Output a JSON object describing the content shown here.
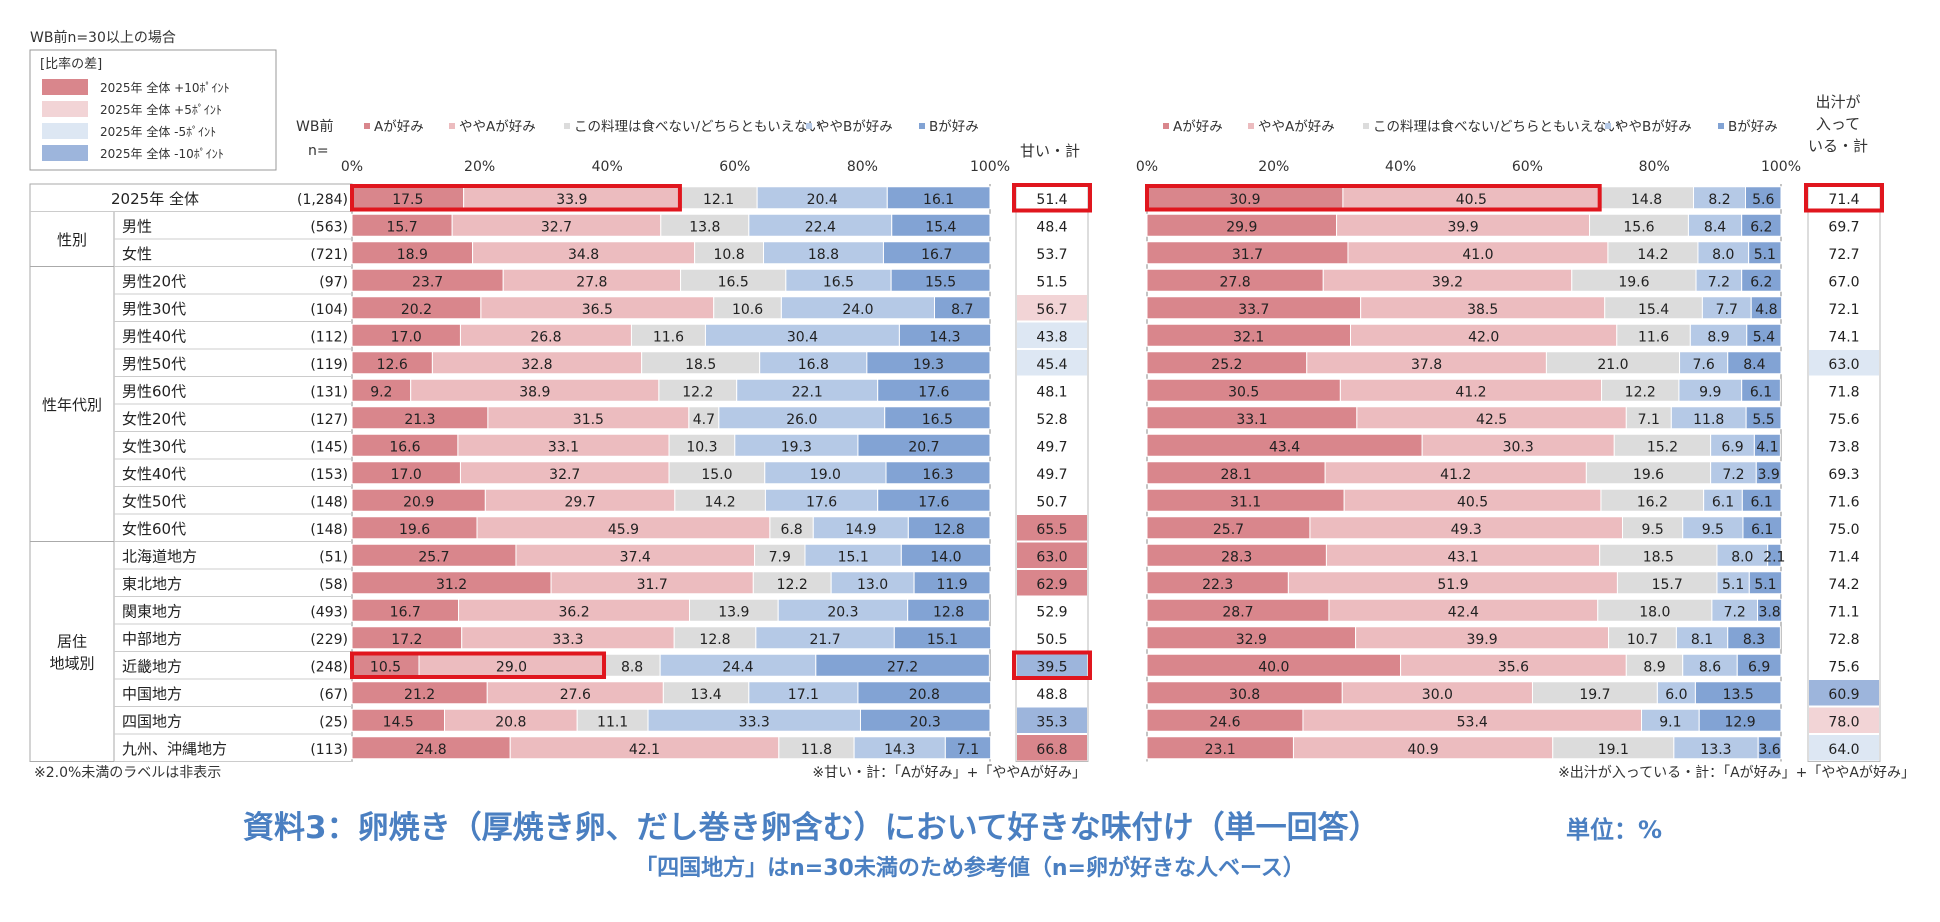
{
  "page": {
    "condition_note": "WB前n=30以上の場合",
    "legend_title": "[比率の差]",
    "legend_items": [
      {
        "label": "2025年 全体 +10ﾎﾟｲﾝﾄ",
        "color": "#d9868c"
      },
      {
        "label": "2025年 全体 +5ﾎﾟｲﾝﾄ",
        "color": "#f2d4d6"
      },
      {
        "label": "2025年 全体 -5ﾎﾟｲﾝﾄ",
        "color": "#dde7f3"
      },
      {
        "label": "2025年 全体 -10ﾎﾟｲﾝﾄ",
        "color": "#9db5dc"
      }
    ],
    "n_header": [
      "WB前",
      "n="
    ],
    "sweet_header": "甘い・計",
    "dashi_header": [
      "出汁が",
      "入って",
      "いる・計"
    ],
    "footnote_left": "※2.0%未満のラベルは非表示",
    "footnote_mid": "※甘い・計：「Aが好み」+「ややAが好み」",
    "footnote_right": "※出汁が入っている・計：「Aが好み」+「ややAが好み」",
    "title": "資料3：卵焼き（厚焼き卵、だし巻き卵含む）において好きな味付け（単一回答）",
    "unit": "単位：%",
    "subtitle": "「四国地方」はn=30未満のため参考値（n=卵が好きな人ベース）"
  },
  "chart_data": {
    "type": "bar",
    "orientation": "horizontal-stacked-100",
    "xlim": [
      0,
      100
    ],
    "ticks": [
      "0%",
      "20%",
      "40%",
      "60%",
      "80%",
      "100%"
    ],
    "legend": [
      "Aが好み",
      "ややAが好み",
      "この料理は食べない/どちらともいえない",
      "ややBが好み",
      "Bが好み"
    ],
    "series_colors": [
      "#d9868c",
      "#ecbcbf",
      "#dcdcdc",
      "#b5c9e6",
      "#82a3d4"
    ],
    "groups": [
      {
        "label": "",
        "start": 0,
        "count": 1
      },
      {
        "label": "性別",
        "start": 1,
        "count": 2
      },
      {
        "label": "性年代別",
        "start": 3,
        "count": 10
      },
      {
        "label": "居住\n地域別",
        "start": 13,
        "count": 8
      }
    ],
    "rows": [
      {
        "label": "2025年 全体",
        "n": "(1,284)",
        "chart1": [
          17.5,
          33.9,
          12.1,
          20.4,
          16.1
        ],
        "sweet": 51.4,
        "chart2": [
          30.9,
          40.5,
          14.8,
          8.2,
          5.6
        ],
        "dashi": 71.4
      },
      {
        "label": "男性",
        "n": "(563)",
        "chart1": [
          15.7,
          32.7,
          13.8,
          22.4,
          15.4
        ],
        "sweet": 48.4,
        "chart2": [
          29.9,
          39.9,
          15.6,
          8.4,
          6.2
        ],
        "dashi": 69.7
      },
      {
        "label": "女性",
        "n": "(721)",
        "chart1": [
          18.9,
          34.8,
          10.8,
          18.8,
          16.7
        ],
        "sweet": 53.7,
        "chart2": [
          31.7,
          41.0,
          14.2,
          8.0,
          5.1
        ],
        "dashi": 72.7
      },
      {
        "label": "男性20代",
        "n": "(97)",
        "chart1": [
          23.7,
          27.8,
          16.5,
          16.5,
          15.5
        ],
        "sweet": 51.5,
        "chart2": [
          27.8,
          39.2,
          19.6,
          7.2,
          6.2
        ],
        "dashi": 67.0
      },
      {
        "label": "男性30代",
        "n": "(104)",
        "chart1": [
          20.2,
          36.5,
          10.6,
          24.0,
          8.7
        ],
        "sweet": 56.7,
        "chart2": [
          33.7,
          38.5,
          15.4,
          7.7,
          4.8
        ],
        "dashi": 72.1
      },
      {
        "label": "男性40代",
        "n": "(112)",
        "chart1": [
          17.0,
          26.8,
          11.6,
          30.4,
          14.3
        ],
        "sweet": 43.8,
        "chart2": [
          32.1,
          42.0,
          11.6,
          8.9,
          5.4
        ],
        "dashi": 74.1
      },
      {
        "label": "男性50代",
        "n": "(119)",
        "chart1": [
          12.6,
          32.8,
          18.5,
          16.8,
          19.3
        ],
        "sweet": 45.4,
        "chart2": [
          25.2,
          37.8,
          21.0,
          7.6,
          8.4
        ],
        "dashi": 63.0
      },
      {
        "label": "男性60代",
        "n": "(131)",
        "chart1": [
          9.2,
          38.9,
          12.2,
          22.1,
          17.6
        ],
        "sweet": 48.1,
        "chart2": [
          30.5,
          41.2,
          12.2,
          9.9,
          6.1
        ],
        "dashi": 71.8
      },
      {
        "label": "女性20代",
        "n": "(127)",
        "chart1": [
          21.3,
          31.5,
          4.7,
          26.0,
          16.5
        ],
        "sweet": 52.8,
        "chart2": [
          33.1,
          42.5,
          7.1,
          11.8,
          5.5
        ],
        "dashi": 75.6
      },
      {
        "label": "女性30代",
        "n": "(145)",
        "chart1": [
          16.6,
          33.1,
          10.3,
          19.3,
          20.7
        ],
        "sweet": 49.7,
        "chart2": [
          43.4,
          30.3,
          15.2,
          6.9,
          4.1
        ],
        "dashi": 73.8
      },
      {
        "label": "女性40代",
        "n": "(153)",
        "chart1": [
          17.0,
          32.7,
          15.0,
          19.0,
          16.3
        ],
        "sweet": 49.7,
        "chart2": [
          28.1,
          41.2,
          19.6,
          7.2,
          3.9
        ],
        "dashi": 69.3
      },
      {
        "label": "女性50代",
        "n": "(148)",
        "chart1": [
          20.9,
          29.7,
          14.2,
          17.6,
          17.6
        ],
        "sweet": 50.7,
        "chart2": [
          31.1,
          40.5,
          16.2,
          6.1,
          6.1
        ],
        "dashi": 71.6
      },
      {
        "label": "女性60代",
        "n": "(148)",
        "chart1": [
          19.6,
          45.9,
          6.8,
          14.9,
          12.8
        ],
        "sweet": 65.5,
        "chart2": [
          25.7,
          49.3,
          9.5,
          9.5,
          6.1
        ],
        "dashi": 75.0
      },
      {
        "label": "北海道地方",
        "n": "(51)",
        "chart1": [
          25.7,
          37.4,
          7.9,
          15.1,
          14.0
        ],
        "sweet": 63.0,
        "chart2": [
          28.3,
          43.1,
          18.5,
          8.0,
          2.1
        ],
        "dashi": 71.4
      },
      {
        "label": "東北地方",
        "n": "(58)",
        "chart1": [
          31.2,
          31.7,
          12.2,
          13.0,
          11.9
        ],
        "sweet": 62.9,
        "chart2": [
          22.3,
          51.9,
          15.7,
          5.1,
          5.1
        ],
        "dashi": 74.2
      },
      {
        "label": "関東地方",
        "n": "(493)",
        "chart1": [
          16.7,
          36.2,
          13.9,
          20.3,
          12.8
        ],
        "sweet": 52.9,
        "chart2": [
          28.7,
          42.4,
          18.0,
          7.2,
          3.8
        ],
        "dashi": 71.1
      },
      {
        "label": "中部地方",
        "n": "(229)",
        "chart1": [
          17.2,
          33.3,
          12.8,
          21.7,
          15.1
        ],
        "sweet": 50.5,
        "chart2": [
          32.9,
          39.9,
          10.7,
          8.1,
          8.3
        ],
        "dashi": 72.8
      },
      {
        "label": "近畿地方",
        "n": "(248)",
        "chart1": [
          10.5,
          29.0,
          8.8,
          24.4,
          27.2
        ],
        "sweet": 39.5,
        "chart2": [
          40.0,
          35.6,
          8.9,
          8.6,
          6.9
        ],
        "dashi": 75.6
      },
      {
        "label": "中国地方",
        "n": "(67)",
        "chart1": [
          21.2,
          27.6,
          13.4,
          17.1,
          20.8
        ],
        "sweet": 48.8,
        "chart2": [
          30.8,
          30.0,
          19.7,
          6.0,
          13.5
        ],
        "dashi": 60.9
      },
      {
        "label": "四国地方",
        "n": "(25)",
        "chart1": [
          14.5,
          20.8,
          11.1,
          33.3,
          20.3
        ],
        "sweet": 35.3,
        "chart2": [
          24.6,
          53.4,
          0,
          9.1,
          12.9
        ],
        "dashi": 78.0
      },
      {
        "label": "九州、沖縄地方",
        "n": "(113)",
        "chart1": [
          24.8,
          42.1,
          11.8,
          14.3,
          7.1
        ],
        "sweet": 66.8,
        "chart2": [
          23.1,
          40.9,
          19.1,
          13.3,
          3.6
        ],
        "dashi": 64.0
      }
    ],
    "highlight_boxes": [
      {
        "chart": 1,
        "row": 0,
        "segments": [
          0,
          1
        ]
      },
      {
        "chart": 1,
        "row": 17,
        "segments": [
          0,
          1
        ]
      },
      {
        "chart": 2,
        "row": 0,
        "segments": [
          0,
          1
        ]
      },
      {
        "col": "sweet",
        "row": 0
      },
      {
        "col": "sweet",
        "row": 17
      },
      {
        "col": "dashi",
        "row": 0
      }
    ]
  }
}
